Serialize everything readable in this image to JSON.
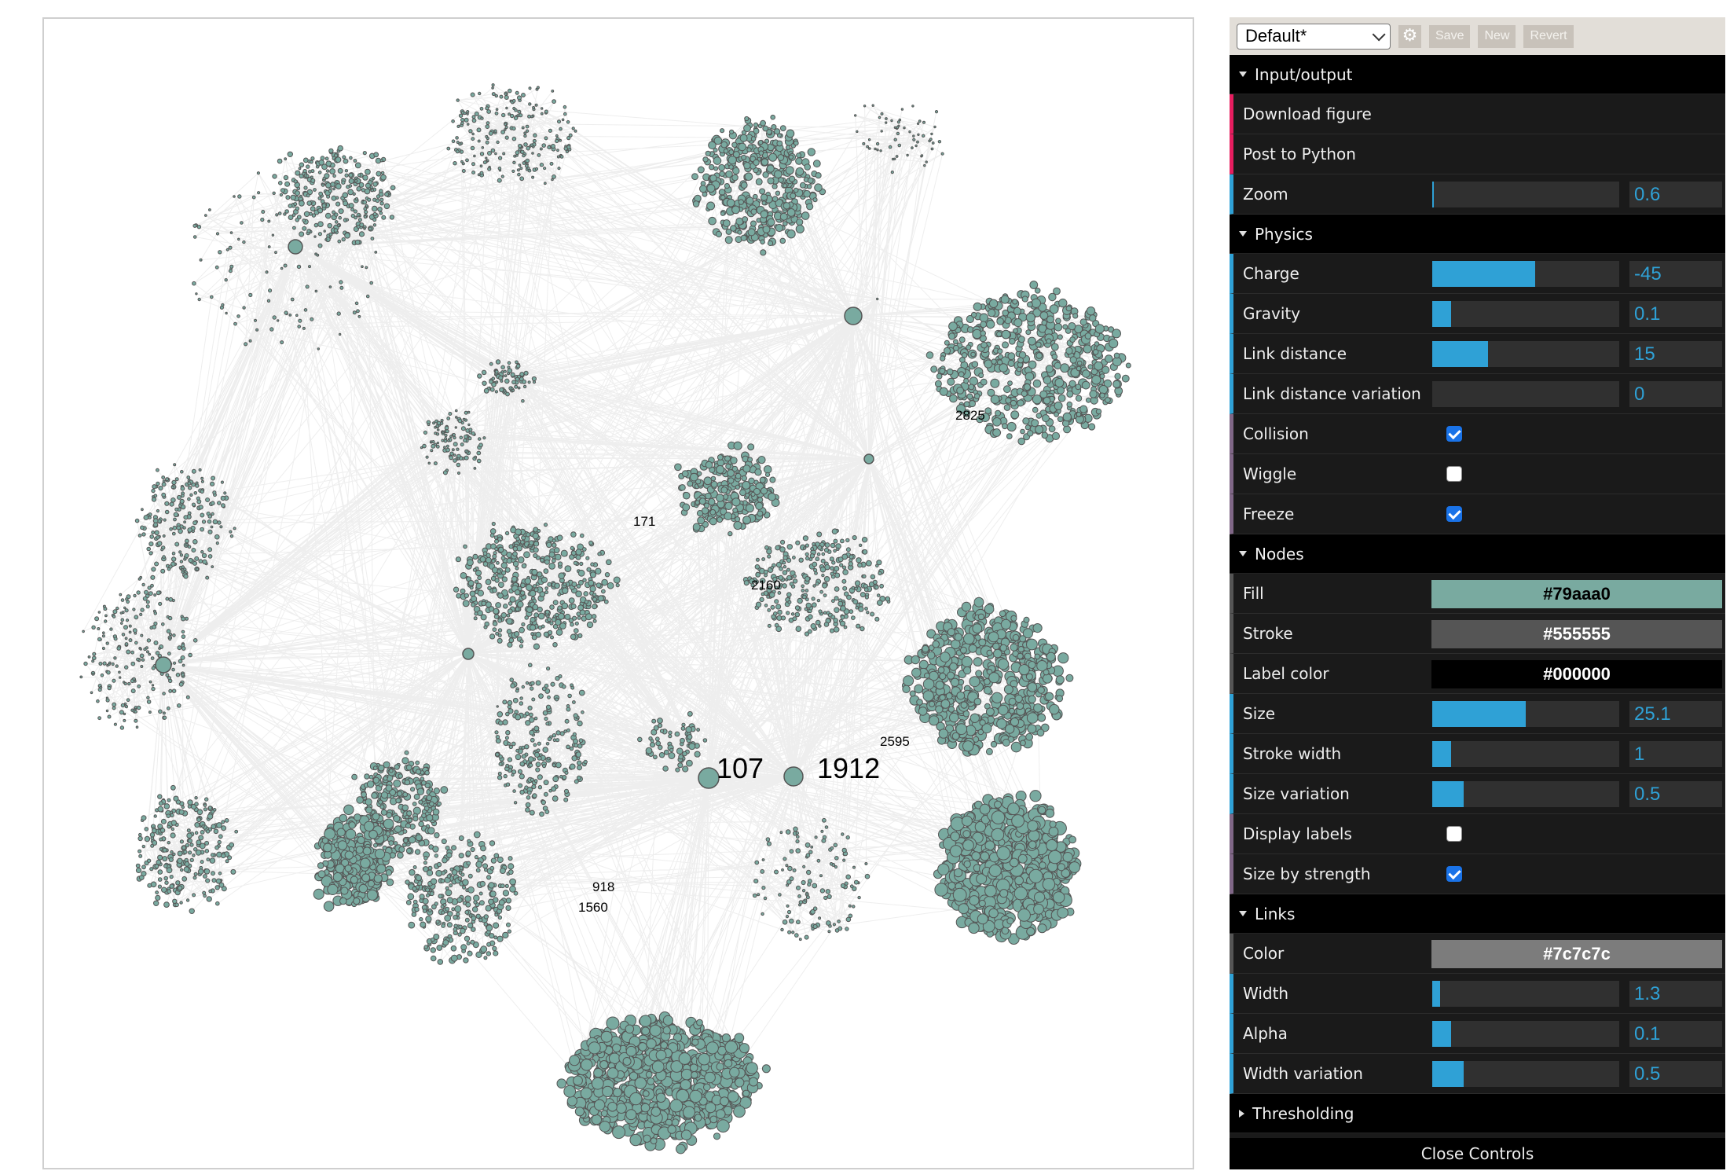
{
  "graph": {
    "node_fill": "#79aaa0",
    "node_stroke": "#555555",
    "link_color": "#7c7c7c",
    "labels": [
      {
        "text": "107",
        "size": "large"
      },
      {
        "text": "1912",
        "size": "large"
      },
      {
        "text": "2825",
        "size": "small"
      },
      {
        "text": "171",
        "size": "small"
      },
      {
        "text": "2160",
        "size": "small"
      },
      {
        "text": "2595",
        "size": "small"
      },
      {
        "text": "918",
        "size": "small"
      },
      {
        "text": "1560",
        "size": "small"
      }
    ]
  },
  "controls": {
    "preset": "Default*",
    "gear_icon": "gear-icon",
    "save_label": "Save",
    "new_label": "New",
    "revert_label": "Revert",
    "close_label": "Close Controls",
    "folders": {
      "io": {
        "title": "Input/output",
        "download": "Download figure",
        "post": "Post to Python",
        "zoom": {
          "label": "Zoom",
          "value": "0.6",
          "fraction": 0.01
        }
      },
      "physics": {
        "title": "Physics",
        "charge": {
          "label": "Charge",
          "value": "-45",
          "fraction": 0.55
        },
        "gravity": {
          "label": "Gravity",
          "value": "0.1",
          "fraction": 0.1
        },
        "link_distance": {
          "label": "Link distance",
          "value": "15",
          "fraction": 0.3
        },
        "link_distance_variation": {
          "label": "Link distance variation",
          "value": "0",
          "fraction": 0
        },
        "collision": {
          "label": "Collision",
          "checked": true
        },
        "wiggle": {
          "label": "Wiggle",
          "checked": false
        },
        "freeze": {
          "label": "Freeze",
          "checked": true
        }
      },
      "nodes": {
        "title": "Nodes",
        "fill": {
          "label": "Fill",
          "value": "#79aaa0",
          "text_color": "#000000"
        },
        "stroke": {
          "label": "Stroke",
          "value": "#555555",
          "text_color": "#ffffff"
        },
        "label_color": {
          "label": "Label color",
          "value": "#000000",
          "text_color": "#ffffff"
        },
        "size": {
          "label": "Size",
          "value": "25.1",
          "fraction": 0.5
        },
        "stroke_width": {
          "label": "Stroke width",
          "value": "1",
          "fraction": 0.1
        },
        "size_variation": {
          "label": "Size variation",
          "value": "0.5",
          "fraction": 0.17
        },
        "display_labels": {
          "label": "Display labels",
          "checked": false
        },
        "size_by_strength": {
          "label": "Size by strength",
          "checked": true
        }
      },
      "links": {
        "title": "Links",
        "color": {
          "label": "Color",
          "value": "#7c7c7c",
          "text_color": "#ffffff"
        },
        "width": {
          "label": "Width",
          "value": "1.3",
          "fraction": 0.04
        },
        "alpha": {
          "label": "Alpha",
          "value": "0.1",
          "fraction": 0.1
        },
        "width_variation": {
          "label": "Width variation",
          "value": "0.5",
          "fraction": 0.17
        }
      },
      "thresholding": {
        "title": "Thresholding"
      }
    }
  }
}
